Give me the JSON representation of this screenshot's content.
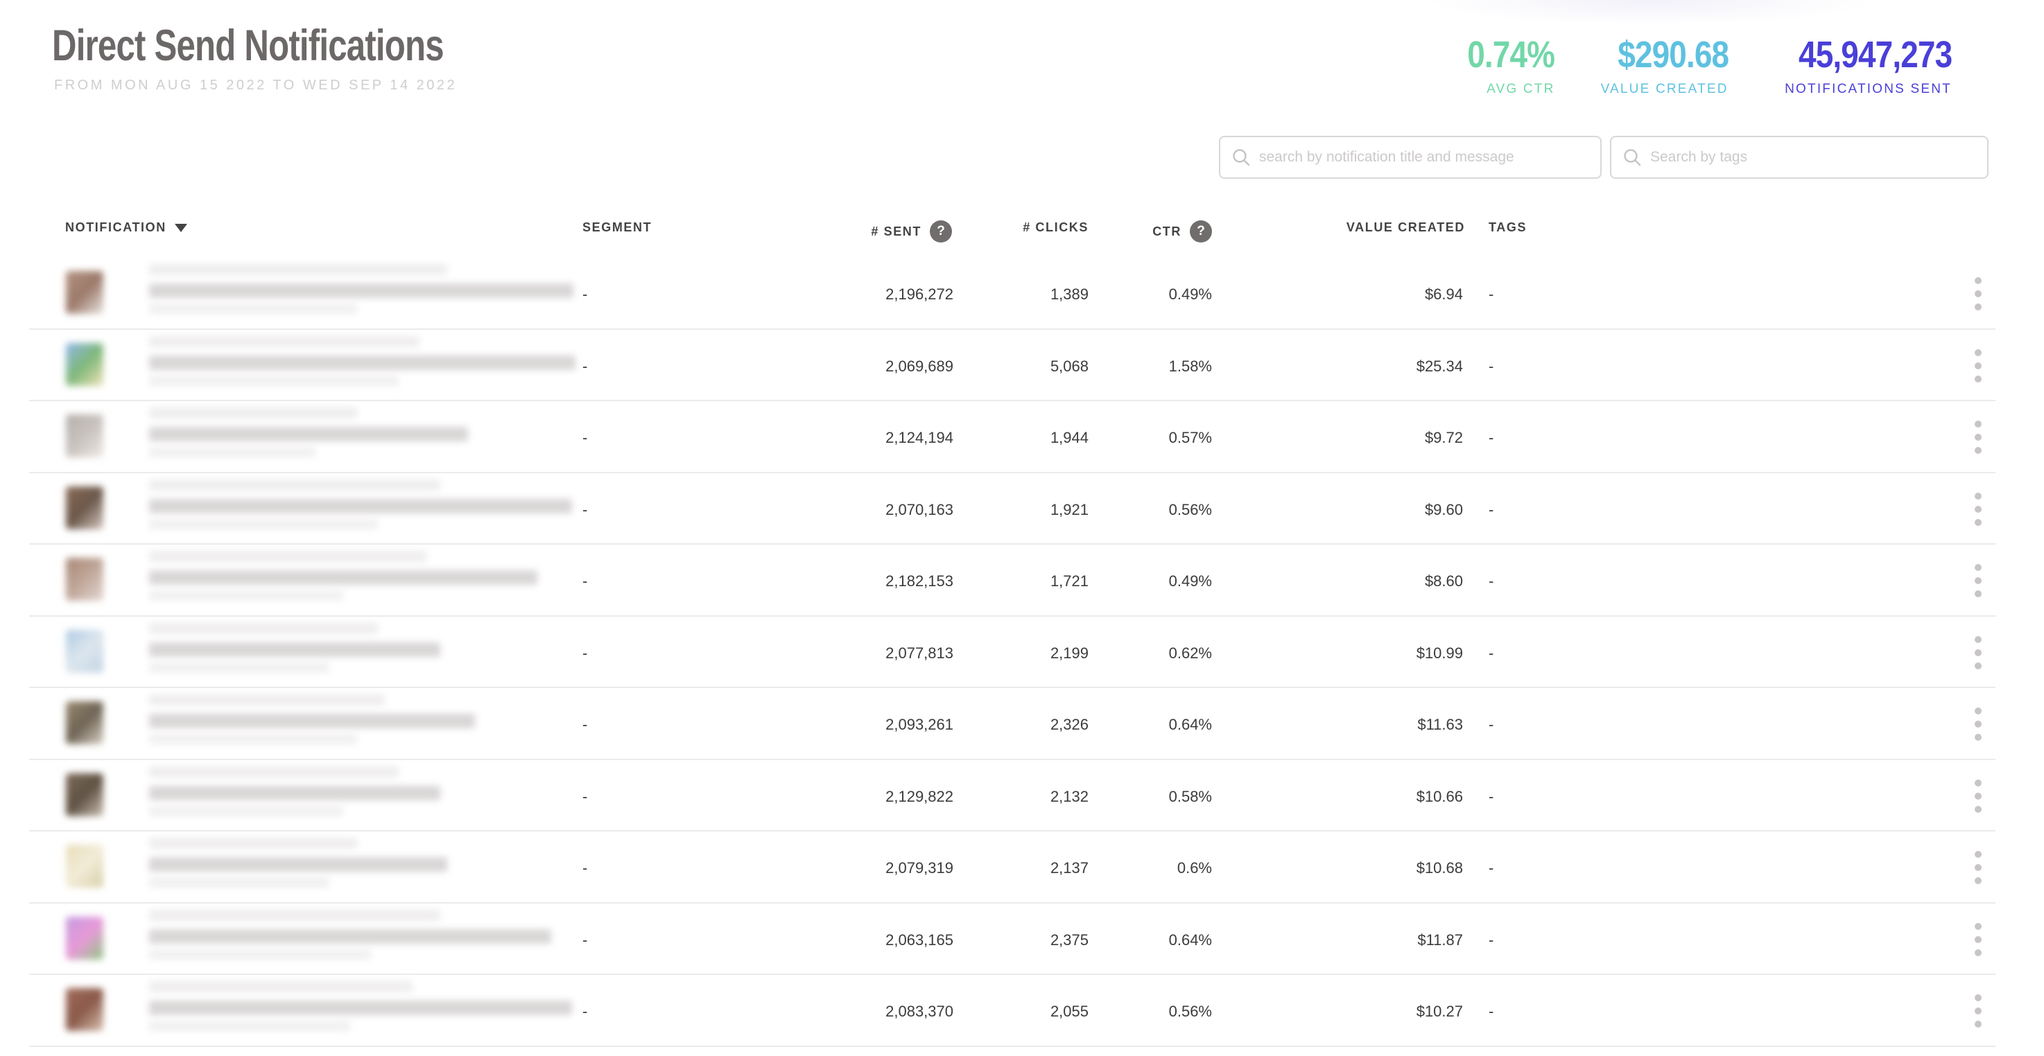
{
  "page": {
    "title": "Direct Send Notifications",
    "date_range": "FROM MON AUG 15 2022 TO WED SEP 14 2022"
  },
  "stats": [
    {
      "value": "0.74%",
      "label": "AVG CTR",
      "color": "#72d7a8"
    },
    {
      "value": "$290.68",
      "label": "VALUE CREATED",
      "color": "#5ec1e0"
    },
    {
      "value": "45,947,273",
      "label": "NOTIFICATIONS SENT",
      "color": "#4a3fd8"
    }
  ],
  "search": {
    "notification_placeholder": "search by notification title and message",
    "tags_placeholder": "Search by tags"
  },
  "table": {
    "columns": {
      "notification": "NOTIFICATION",
      "segment": "SEGMENT",
      "sent": "# SENT",
      "clicks": "# CLICKS",
      "ctr": "CTR",
      "value_created": "VALUE CREATED",
      "tags": "TAGS"
    },
    "help_badge": "?",
    "rows": [
      {
        "segment": "-",
        "sent": "2,196,272",
        "clicks": "1,389",
        "ctr": "0.49%",
        "value": "$6.94",
        "tags": "-",
        "thumb_colors": [
          "#b39280",
          "#9c7a6a",
          "#e8e3df"
        ],
        "blur_bars": [
          430,
          612,
          300
        ]
      },
      {
        "segment": "-",
        "sent": "2,069,689",
        "clicks": "5,068",
        "ctr": "1.58%",
        "value": "$25.34",
        "tags": "-",
        "thumb_colors": [
          "#8fb7ea",
          "#7fb87a",
          "#f0e3b8"
        ],
        "blur_bars": [
          390,
          615,
          360
        ]
      },
      {
        "segment": "-",
        "sent": "2,124,194",
        "clicks": "1,944",
        "ctr": "0.57%",
        "value": "$9.72",
        "tags": "-",
        "thumb_colors": [
          "#b5aeab",
          "#c9c3bf",
          "#efe9e4"
        ],
        "blur_bars": [
          300,
          460,
          240
        ]
      },
      {
        "segment": "-",
        "sent": "2,070,163",
        "clicks": "1,921",
        "ctr": "0.56%",
        "value": "$9.60",
        "tags": "-",
        "thumb_colors": [
          "#8a6a56",
          "#6b584a",
          "#d4c8c0"
        ],
        "blur_bars": [
          420,
          610,
          330
        ]
      },
      {
        "segment": "-",
        "sent": "2,182,153",
        "clicks": "1,721",
        "ctr": "0.49%",
        "value": "$8.60",
        "tags": "-",
        "thumb_colors": [
          "#a98775",
          "#c0a79a",
          "#e3d7d0"
        ],
        "blur_bars": [
          400,
          560,
          280
        ]
      },
      {
        "segment": "-",
        "sent": "2,077,813",
        "clicks": "2,199",
        "ctr": "0.62%",
        "value": "$10.99",
        "tags": "-",
        "thumb_colors": [
          "#aecbe3",
          "#dce6ee",
          "#c3d4e4"
        ],
        "blur_bars": [
          330,
          420,
          260
        ]
      },
      {
        "segment": "-",
        "sent": "2,093,261",
        "clicks": "2,326",
        "ctr": "0.64%",
        "value": "$11.63",
        "tags": "-",
        "thumb_colors": [
          "#9a8a70",
          "#6f6455",
          "#d8d0c4"
        ],
        "blur_bars": [
          340,
          470,
          300
        ]
      },
      {
        "segment": "-",
        "sent": "2,129,822",
        "clicks": "2,132",
        "ctr": "0.58%",
        "value": "$10.66",
        "tags": "-",
        "thumb_colors": [
          "#7d6a58",
          "#5f5244",
          "#cbbfb2"
        ],
        "blur_bars": [
          360,
          420,
          280
        ]
      },
      {
        "segment": "-",
        "sent": "2,079,319",
        "clicks": "2,137",
        "ctr": "0.6%",
        "value": "$10.68",
        "tags": "-",
        "thumb_colors": [
          "#e8ddb8",
          "#f2ecd8",
          "#d9cfa8"
        ],
        "blur_bars": [
          300,
          430,
          260
        ]
      },
      {
        "segment": "-",
        "sent": "2,063,165",
        "clicks": "2,375",
        "ctr": "0.64%",
        "value": "$11.87",
        "tags": "-",
        "thumb_colors": [
          "#c49ae0",
          "#e89ad8",
          "#90c883"
        ],
        "blur_bars": [
          420,
          580,
          320
        ]
      },
      {
        "segment": "-",
        "sent": "2,083,370",
        "clicks": "2,055",
        "ctr": "0.56%",
        "value": "$10.27",
        "tags": "-",
        "thumb_colors": [
          "#a06a5a",
          "#8a5a4a",
          "#d8c0b0"
        ],
        "blur_bars": [
          380,
          610,
          290
        ]
      }
    ]
  }
}
